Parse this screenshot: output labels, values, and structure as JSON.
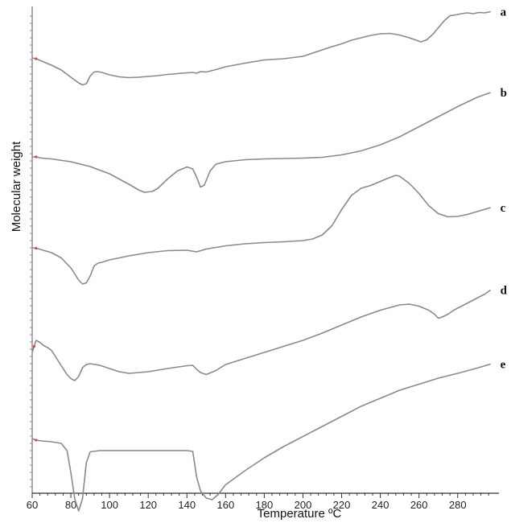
{
  "chart_data": {
    "type": "line",
    "xlabel": "Temperature ºC",
    "ylabel": "Molecular weight",
    "xlim": [
      60,
      298
    ],
    "x_ticks": [
      "60",
      "80",
      "100",
      "120",
      "140",
      "160",
      "180",
      "200",
      "220",
      "240",
      "260",
      "280"
    ],
    "grid": false,
    "series": [
      {
        "label": "a",
        "color": "#8a8a8a",
        "x": [
          60,
          62,
          65,
          70,
          75,
          80,
          84,
          86,
          88,
          90,
          92,
          94,
          96,
          100,
          105,
          110,
          115,
          120,
          125,
          130,
          135,
          140,
          143,
          145,
          147,
          150,
          155,
          160,
          170,
          180,
          190,
          200,
          205,
          210,
          215,
          220,
          225,
          230,
          235,
          240,
          245,
          250,
          255,
          258,
          261,
          264,
          267,
          270,
          273,
          276,
          279,
          282,
          285,
          288,
          291,
          294,
          297
        ],
        "y": [
          0,
          -0.02,
          -0.08,
          -0.18,
          -0.3,
          -0.48,
          -0.62,
          -0.67,
          -0.64,
          -0.45,
          -0.35,
          -0.34,
          -0.36,
          -0.42,
          -0.47,
          -0.49,
          -0.48,
          -0.46,
          -0.44,
          -0.41,
          -0.39,
          -0.37,
          -0.36,
          -0.38,
          -0.34,
          -0.35,
          -0.29,
          -0.22,
          -0.13,
          -0.05,
          -0.02,
          0.04,
          0.12,
          0.2,
          0.28,
          0.35,
          0.44,
          0.5,
          0.56,
          0.6,
          0.61,
          0.57,
          0.5,
          0.45,
          0.4,
          0.45,
          0.58,
          0.75,
          0.92,
          1.05,
          1.07,
          1.1,
          1.12,
          1.1,
          1.13,
          1.12,
          1.15
        ]
      },
      {
        "label": "b",
        "color": "#8a8a8a",
        "x": [
          60,
          62,
          65,
          70,
          80,
          90,
          100,
          110,
          115,
          118,
          122,
          125,
          130,
          135,
          140,
          143,
          145,
          147,
          149,
          152,
          155,
          160,
          170,
          180,
          190,
          200,
          210,
          220,
          230,
          240,
          250,
          260,
          270,
          280,
          290,
          297
        ],
        "y": [
          0,
          0,
          -0.03,
          -0.05,
          -0.12,
          -0.24,
          -0.42,
          -0.68,
          -0.82,
          -0.88,
          -0.86,
          -0.78,
          -0.55,
          -0.35,
          -0.25,
          -0.3,
          -0.5,
          -0.75,
          -0.7,
          -0.35,
          -0.18,
          -0.12,
          -0.07,
          -0.05,
          -0.04,
          -0.03,
          -0.01,
          0.05,
          0.15,
          0.3,
          0.5,
          0.75,
          1,
          1.25,
          1.48,
          1.6
        ]
      },
      {
        "label": "c",
        "color": "#8a8a8a",
        "x": [
          60,
          62,
          65,
          70,
          75,
          80,
          84,
          86,
          88,
          90,
          92,
          94,
          96,
          100,
          110,
          120,
          130,
          140,
          145,
          150,
          160,
          170,
          180,
          190,
          200,
          205,
          210,
          215,
          220,
          225,
          230,
          235,
          240,
          245,
          248,
          250,
          255,
          260,
          265,
          270,
          275,
          280,
          285,
          290,
          297
        ],
        "y": [
          0,
          -0.01,
          -0.05,
          -0.12,
          -0.25,
          -0.5,
          -0.8,
          -0.9,
          -0.87,
          -0.7,
          -0.45,
          -0.38,
          -0.36,
          -0.3,
          -0.2,
          -0.12,
          -0.07,
          -0.06,
          -0.1,
          -0.03,
          0.05,
          0.1,
          0.13,
          0.15,
          0.18,
          0.22,
          0.32,
          0.55,
          0.95,
          1.3,
          1.48,
          1.55,
          1.65,
          1.75,
          1.8,
          1.78,
          1.6,
          1.35,
          1.05,
          0.85,
          0.77,
          0.78,
          0.83,
          0.9,
          1.0
        ]
      },
      {
        "label": "d",
        "color": "#8a8a8a",
        "x": [
          60,
          61,
          62,
          64,
          66,
          68,
          70,
          74,
          78,
          80,
          82,
          84,
          86,
          88,
          90,
          95,
          100,
          105,
          110,
          120,
          130,
          140,
          143,
          145,
          147,
          150,
          155,
          160,
          170,
          180,
          190,
          200,
          210,
          220,
          230,
          240,
          250,
          255,
          260,
          265,
          268,
          270,
          272,
          275,
          278,
          282,
          286,
          290,
          294,
          297
        ],
        "y": [
          0,
          0.15,
          0.3,
          0.25,
          0.17,
          0.12,
          0.05,
          -0.25,
          -0.55,
          -0.65,
          -0.7,
          -0.6,
          -0.38,
          -0.3,
          -0.28,
          -0.32,
          -0.4,
          -0.48,
          -0.52,
          -0.48,
          -0.4,
          -0.33,
          -0.32,
          -0.42,
          -0.5,
          -0.55,
          -0.45,
          -0.3,
          -0.15,
          0,
          0.15,
          0.3,
          0.48,
          0.68,
          0.88,
          1.05,
          1.18,
          1.2,
          1.15,
          1.05,
          0.95,
          0.85,
          0.88,
          0.95,
          1.05,
          1.15,
          1.25,
          1.35,
          1.45,
          1.55
        ]
      },
      {
        "label": "e",
        "color": "#8a8a8a",
        "x": [
          60,
          62,
          65,
          70,
          75,
          78,
          80,
          82,
          84,
          86,
          88,
          90,
          95,
          100,
          110,
          120,
          130,
          140,
          143,
          145,
          147,
          150,
          153,
          156,
          160,
          170,
          180,
          190,
          200,
          210,
          220,
          230,
          240,
          250,
          260,
          270,
          280,
          290,
          297
        ],
        "y": [
          0,
          -0.04,
          -0.06,
          -0.08,
          -0.12,
          -0.3,
          -0.85,
          -1.5,
          -1.8,
          -1.5,
          -0.6,
          -0.33,
          -0.3,
          -0.3,
          -0.3,
          -0.3,
          -0.3,
          -0.3,
          -0.32,
          -0.95,
          -1.3,
          -1.48,
          -1.52,
          -1.4,
          -1.15,
          -0.8,
          -0.48,
          -0.2,
          0.05,
          0.3,
          0.55,
          0.8,
          1.0,
          1.2,
          1.35,
          1.5,
          1.62,
          1.75,
          1.85
        ]
      }
    ]
  }
}
